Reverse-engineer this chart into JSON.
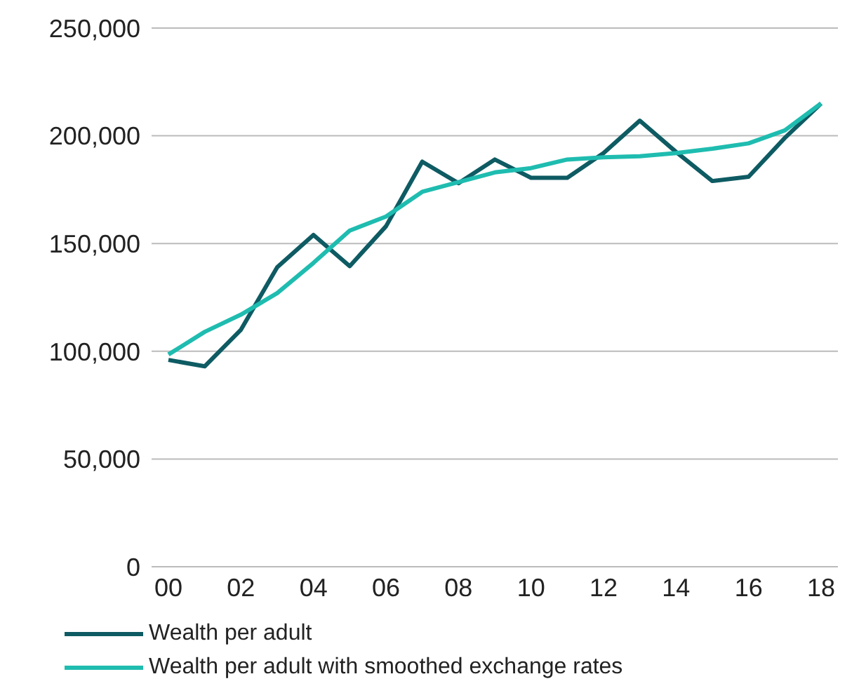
{
  "chart_data": {
    "type": "line",
    "categories": [
      "00",
      null,
      "02",
      null,
      "04",
      null,
      "06",
      null,
      "08",
      null,
      "10",
      null,
      "12",
      null,
      "14",
      null,
      "16",
      null,
      "18"
    ],
    "series": [
      {
        "name": "Wealth per adult",
        "color": "#0e5b63",
        "values": [
          96000,
          93000,
          110000,
          139000,
          154000,
          139500,
          158000,
          188000,
          178000,
          189000,
          180500,
          180500,
          192000,
          207000,
          192500,
          179000,
          181000,
          199000,
          215000
        ]
      },
      {
        "name": "Wealth per adult with smoothed exchange rates",
        "color": "#1fbcb0",
        "values": [
          98500,
          109000,
          117000,
          127000,
          141000,
          156000,
          162500,
          174000,
          178500,
          183000,
          185000,
          189000,
          190000,
          190500,
          192000,
          194000,
          196500,
          202500,
          215000
        ]
      }
    ],
    "ylim": [
      0,
      250000
    ],
    "yticks": [
      0,
      {
        "value": 50000,
        "label": "50,000"
      },
      {
        "value": 100000,
        "label": "100,000"
      },
      {
        "value": 150000,
        "label": "150,000"
      },
      {
        "value": 200000,
        "label": "200,000"
      },
      {
        "value": 250000,
        "label": "250,000"
      }
    ],
    "grid": "y",
    "legend": "bottom",
    "marker": "none",
    "line_style": "solid"
  }
}
